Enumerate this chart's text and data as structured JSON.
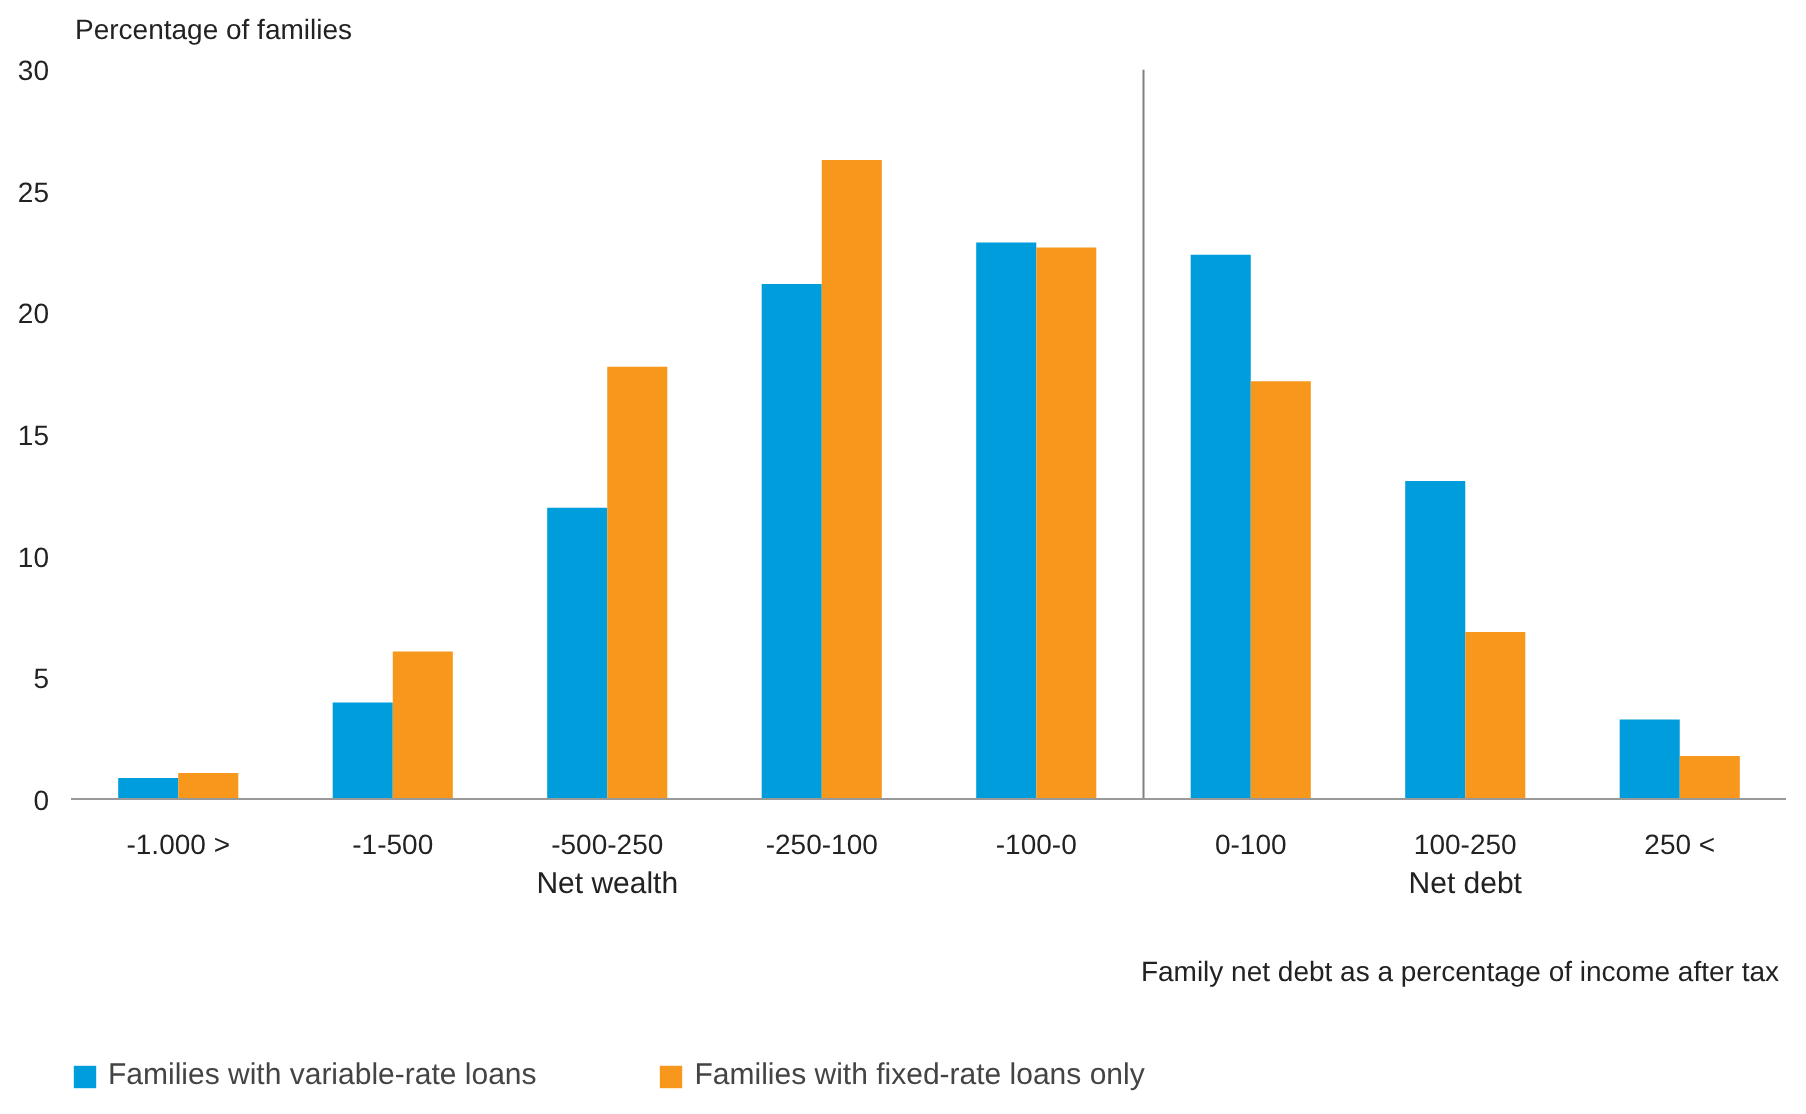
{
  "chart_data": {
    "type": "bar",
    "categories": [
      "-1.000 >",
      "-1-500",
      "-500-250",
      "-250-100",
      "-100-0",
      "0-100",
      "100-250",
      "250 <"
    ],
    "series": [
      {
        "name": "Families with variable-rate loans",
        "color": "#009ddc",
        "values": [
          0.9,
          4.0,
          12.0,
          21.2,
          22.9,
          22.4,
          13.1,
          3.3
        ]
      },
      {
        "name": "Families with fixed-rate loans only",
        "color": "#f7971c",
        "values": [
          1.1,
          6.1,
          17.8,
          26.3,
          22.7,
          17.2,
          6.9,
          1.8
        ]
      }
    ],
    "ylabel": "Percentage of families",
    "xlabel": "Family net debt as a percentage of income after tax",
    "annotations": [
      "Net wealth",
      "Net debt"
    ],
    "ylim": [
      0,
      30
    ],
    "yticks": [
      0,
      5,
      10,
      15,
      20,
      25,
      30
    ],
    "grid": false,
    "legend": "bottom"
  }
}
